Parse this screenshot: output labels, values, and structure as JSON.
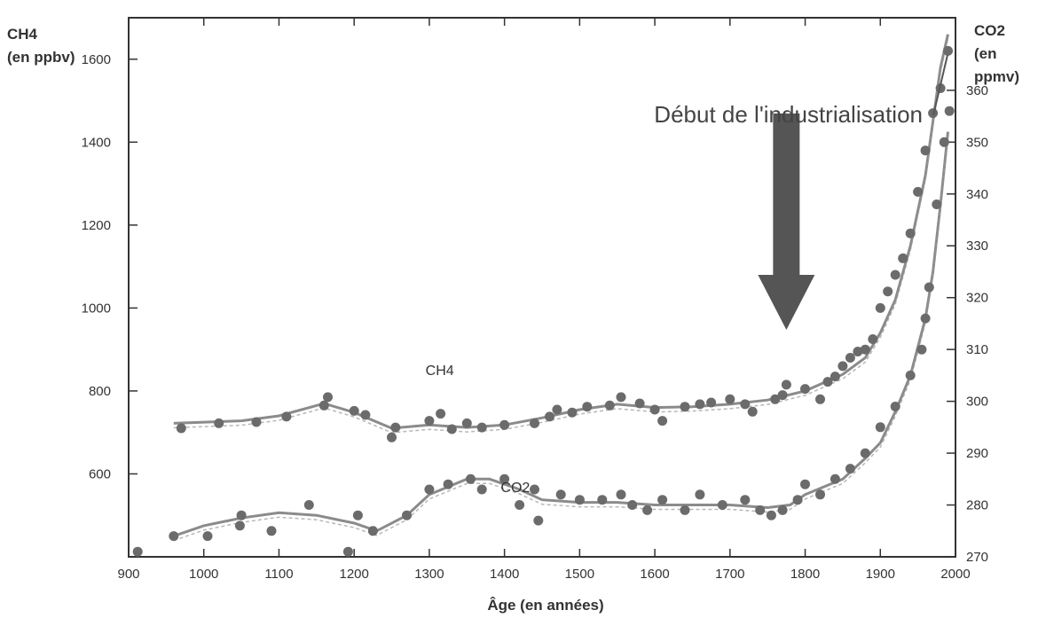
{
  "chart_data": {
    "type": "scatter",
    "xlabel": "Âge (en années)",
    "y_left_label_line1": "CH4",
    "y_left_label_line2": "(en ppbv)",
    "y_right_label_line1": "CO2",
    "y_right_label_line2": "(en",
    "y_right_label_line3": "ppmv)",
    "xlim": [
      900,
      2000
    ],
    "ylim_left": [
      400,
      1700
    ],
    "ylim_right": [
      270,
      374
    ],
    "x_ticks": [
      900,
      1000,
      1100,
      1200,
      1300,
      1400,
      1500,
      1600,
      1700,
      1800,
      1900,
      2000
    ],
    "y_left_ticks": [
      600,
      800,
      1000,
      1200,
      1400,
      1600
    ],
    "y_right_ticks": [
      270,
      280,
      290,
      300,
      310,
      320,
      330,
      340,
      350,
      360
    ],
    "annotation": {
      "text": "Début de l'industrialisation",
      "x": 1775
    },
    "series": [
      {
        "name": "CH4",
        "axis": "left",
        "label_x": 1295,
        "label_y": 838,
        "points": [
          [
            970,
            710
          ],
          [
            1020,
            722
          ],
          [
            1070,
            725
          ],
          [
            1110,
            738
          ],
          [
            1160,
            765
          ],
          [
            1165,
            785
          ],
          [
            1200,
            752
          ],
          [
            1215,
            742
          ],
          [
            1250,
            688
          ],
          [
            1255,
            712
          ],
          [
            1300,
            728
          ],
          [
            1315,
            745
          ],
          [
            1330,
            708
          ],
          [
            1350,
            722
          ],
          [
            1370,
            712
          ],
          [
            1400,
            718
          ],
          [
            1440,
            722
          ],
          [
            1460,
            738
          ],
          [
            1470,
            755
          ],
          [
            1490,
            748
          ],
          [
            1510,
            762
          ],
          [
            1540,
            765
          ],
          [
            1555,
            785
          ],
          [
            1580,
            770
          ],
          [
            1600,
            755
          ],
          [
            1610,
            728
          ],
          [
            1640,
            762
          ],
          [
            1660,
            768
          ],
          [
            1675,
            772
          ],
          [
            1700,
            780
          ],
          [
            1720,
            768
          ],
          [
            1730,
            750
          ],
          [
            1760,
            780
          ],
          [
            1770,
            790
          ],
          [
            1775,
            815
          ],
          [
            1800,
            805
          ],
          [
            1820,
            780
          ],
          [
            1830,
            822
          ],
          [
            1840,
            835
          ],
          [
            1850,
            860
          ],
          [
            1860,
            880
          ],
          [
            1870,
            895
          ],
          [
            1880,
            900
          ],
          [
            1890,
            925
          ],
          [
            1900,
            1000
          ],
          [
            1910,
            1040
          ],
          [
            1920,
            1080
          ],
          [
            1930,
            1120
          ],
          [
            1940,
            1180
          ],
          [
            1950,
            1280
          ],
          [
            1960,
            1380
          ],
          [
            1970,
            1470
          ],
          [
            1980,
            1530
          ],
          [
            1990,
            1620
          ]
        ],
        "fit": [
          [
            960,
            722
          ],
          [
            1050,
            728
          ],
          [
            1100,
            740
          ],
          [
            1160,
            770
          ],
          [
            1200,
            748
          ],
          [
            1250,
            710
          ],
          [
            1300,
            718
          ],
          [
            1350,
            712
          ],
          [
            1400,
            718
          ],
          [
            1450,
            735
          ],
          [
            1500,
            755
          ],
          [
            1550,
            768
          ],
          [
            1600,
            760
          ],
          [
            1650,
            762
          ],
          [
            1700,
            768
          ],
          [
            1750,
            778
          ],
          [
            1800,
            800
          ],
          [
            1850,
            840
          ],
          [
            1880,
            880
          ],
          [
            1900,
            940
          ],
          [
            1920,
            1020
          ],
          [
            1940,
            1150
          ],
          [
            1960,
            1320
          ],
          [
            1970,
            1450
          ],
          [
            1980,
            1580
          ],
          [
            1990,
            1660
          ]
        ]
      },
      {
        "name": "CO2",
        "axis": "right",
        "label_x": 1395,
        "label_y": 282.5,
        "points": [
          [
            912,
            271
          ],
          [
            960,
            274
          ],
          [
            1005,
            274
          ],
          [
            1050,
            278
          ],
          [
            1048,
            276
          ],
          [
            1090,
            275
          ],
          [
            1140,
            280
          ],
          [
            1192,
            271
          ],
          [
            1205,
            278
          ],
          [
            1225,
            275
          ],
          [
            1270,
            278
          ],
          [
            1300,
            283
          ],
          [
            1325,
            284
          ],
          [
            1355,
            285
          ],
          [
            1370,
            283
          ],
          [
            1400,
            285
          ],
          [
            1420,
            280
          ],
          [
            1440,
            283
          ],
          [
            1445,
            277
          ],
          [
            1475,
            282
          ],
          [
            1500,
            281
          ],
          [
            1530,
            281
          ],
          [
            1555,
            282
          ],
          [
            1570,
            280
          ],
          [
            1590,
            279
          ],
          [
            1610,
            281
          ],
          [
            1640,
            279
          ],
          [
            1660,
            282
          ],
          [
            1690,
            280
          ],
          [
            1720,
            281
          ],
          [
            1740,
            279
          ],
          [
            1755,
            278
          ],
          [
            1770,
            279
          ],
          [
            1790,
            281
          ],
          [
            1800,
            284
          ],
          [
            1820,
            282
          ],
          [
            1840,
            285
          ],
          [
            1860,
            287
          ],
          [
            1880,
            290
          ],
          [
            1900,
            295
          ],
          [
            1920,
            299
          ],
          [
            1940,
            305
          ],
          [
            1955,
            310
          ],
          [
            1960,
            316
          ],
          [
            1965,
            322
          ],
          [
            1975,
            338
          ],
          [
            1985,
            350
          ],
          [
            1992,
            356
          ]
        ],
        "fit": [
          [
            960,
            274
          ],
          [
            1000,
            276
          ],
          [
            1050,
            277.5
          ],
          [
            1100,
            278.5
          ],
          [
            1150,
            278
          ],
          [
            1200,
            276.5
          ],
          [
            1230,
            275
          ],
          [
            1270,
            278
          ],
          [
            1300,
            282
          ],
          [
            1350,
            285
          ],
          [
            1380,
            285
          ],
          [
            1420,
            283
          ],
          [
            1450,
            281
          ],
          [
            1500,
            280.5
          ],
          [
            1550,
            280.5
          ],
          [
            1600,
            280
          ],
          [
            1650,
            280
          ],
          [
            1700,
            280
          ],
          [
            1750,
            279.5
          ],
          [
            1780,
            280
          ],
          [
            1800,
            282
          ],
          [
            1850,
            285
          ],
          [
            1880,
            289
          ],
          [
            1900,
            292
          ],
          [
            1920,
            298
          ],
          [
            1940,
            305
          ],
          [
            1960,
            316
          ],
          [
            1970,
            325
          ],
          [
            1980,
            338
          ],
          [
            1990,
            352
          ]
        ]
      }
    ]
  }
}
